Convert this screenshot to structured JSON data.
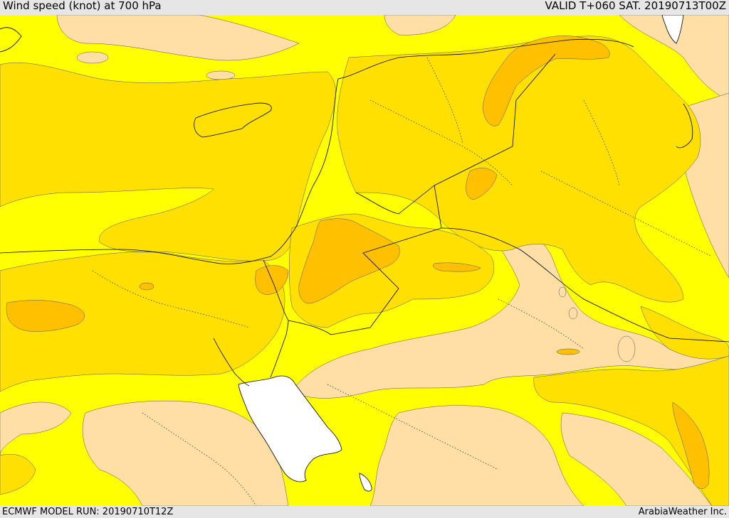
{
  "header": {
    "title": "Wind speed (knot) at 700 hPa",
    "valid": "VALID T+060 SAT. 20190713T00Z"
  },
  "footer": {
    "model_run": "ECMWF MODEL RUN: 20190710T12Z",
    "credit": "ArabiaWeather Inc."
  },
  "colors": {
    "band_light": "#ffdfa6",
    "band_yellow": "#ffff00",
    "band_gold": "#ffe000",
    "band_orange": "#ffc000",
    "no_data": "#ffffff",
    "lines": "#000000"
  }
}
